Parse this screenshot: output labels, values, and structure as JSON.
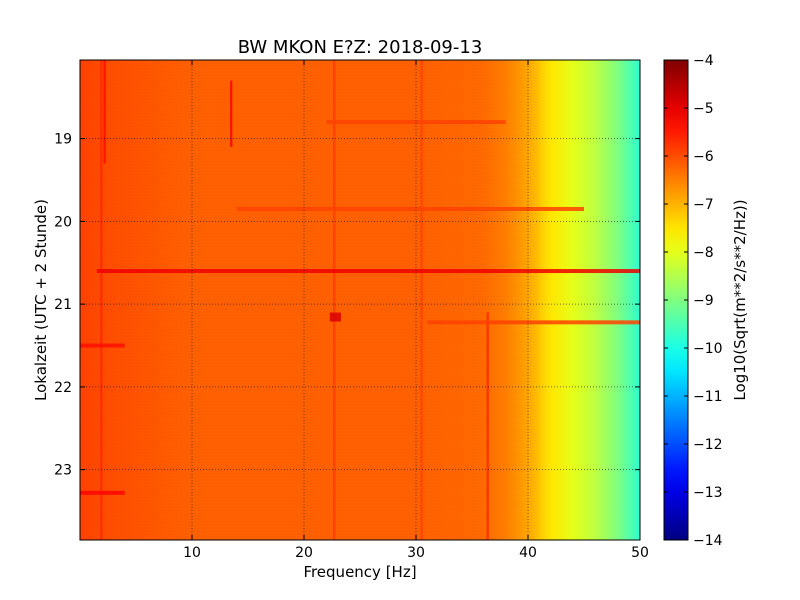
{
  "chart_data": {
    "type": "heatmap",
    "title": "BW MKON E?Z: 2018-09-13",
    "xlabel": "Frequency [Hz]",
    "ylabel": "Lokalzeit (UTC + 2 Stunde)",
    "xlim": [
      0,
      50
    ],
    "ylim": [
      18.05,
      23.85
    ],
    "y_inverted": true,
    "x_ticks": [
      10,
      20,
      30,
      40,
      50
    ],
    "x_tick_labels": [
      "10",
      "20",
      "30",
      "40",
      "50"
    ],
    "y_ticks": [
      19,
      20,
      21,
      22,
      23
    ],
    "y_tick_labels": [
      "19",
      "20",
      "21",
      "22",
      "23"
    ],
    "grid": true,
    "grid_style": "dotted",
    "colormap": "jet",
    "colorbar": {
      "label": "Log10(Sqrt(m**2/s**2/Hz))",
      "range": [
        -14,
        -4
      ],
      "ticks": [
        -4,
        -5,
        -6,
        -7,
        -8,
        -9,
        -10,
        -11,
        -12,
        -13,
        -14
      ],
      "tick_labels": [
        "−4",
        "−5",
        "−6",
        "−7",
        "−8",
        "−9",
        "−10",
        "−11",
        "−12",
        "−13",
        "−14"
      ]
    },
    "spectrum_profile": [
      {
        "freq": 0,
        "value": -5.9
      },
      {
        "freq": 2,
        "value": -6.0
      },
      {
        "freq": 10,
        "value": -6.2
      },
      {
        "freq": 30,
        "value": -6.2
      },
      {
        "freq": 36,
        "value": -6.3
      },
      {
        "freq": 38,
        "value": -6.5
      },
      {
        "freq": 40,
        "value": -6.9
      },
      {
        "freq": 42,
        "value": -7.5
      },
      {
        "freq": 44,
        "value": -8.0
      },
      {
        "freq": 46,
        "value": -8.4
      },
      {
        "freq": 48,
        "value": -9.0
      },
      {
        "freq": 50,
        "value": -9.8
      }
    ],
    "horizontal_features": [
      {
        "time": 20.6,
        "f_start": 1.5,
        "f_end": 50,
        "value": -5.1
      },
      {
        "time": 19.85,
        "f_start": 14,
        "f_end": 45,
        "value": -5.9
      },
      {
        "time": 21.22,
        "f_start": 31,
        "f_end": 50,
        "value": -5.9
      },
      {
        "time": 21.5,
        "f_start": 0,
        "f_end": 4,
        "value": -5.4
      },
      {
        "time": 23.28,
        "f_start": 0,
        "f_end": 4,
        "value": -5.3
      },
      {
        "time": 18.8,
        "f_start": 22,
        "f_end": 38,
        "value": -5.9
      },
      {
        "time": 21.15,
        "f_start": 22.3,
        "f_end": 23.3,
        "value": -4.9
      }
    ],
    "vertical_features": [
      {
        "freq": 1.9,
        "t_start": 18.05,
        "t_end": 23.85,
        "value": -5.6
      },
      {
        "freq": 2.2,
        "t_start": 18.05,
        "t_end": 19.3,
        "value": -5.3
      },
      {
        "freq": 13.5,
        "t_start": 18.3,
        "t_end": 19.1,
        "value": -5.1
      },
      {
        "freq": 22.7,
        "t_start": 18.05,
        "t_end": 23.85,
        "value": -5.8
      },
      {
        "freq": 30.5,
        "t_start": 18.05,
        "t_end": 23.85,
        "value": -5.9
      },
      {
        "freq": 36.4,
        "t_start": 21.1,
        "t_end": 23.85,
        "value": -5.6
      }
    ]
  }
}
